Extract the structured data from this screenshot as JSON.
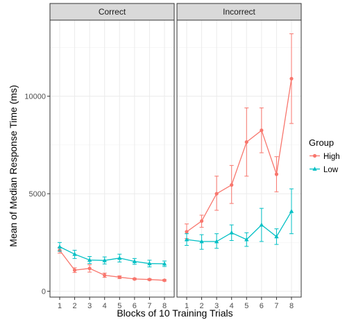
{
  "chart_data": {
    "type": "line",
    "xlabel": "Blocks of 10 Training Trials",
    "ylabel": "Mean of Median Response Time (ms)",
    "x": [
      1,
      2,
      3,
      4,
      5,
      6,
      7,
      8
    ],
    "ylim": [
      -300,
      13900
    ],
    "yticks": [
      0,
      5000,
      10000
    ],
    "grid": true,
    "legend": {
      "title": "Group",
      "position": "right"
    },
    "series_styles": [
      {
        "name": "High",
        "color": "#F8766D",
        "marker": "circle"
      },
      {
        "name": "Low",
        "color": "#00BFC4",
        "marker": "triangle"
      }
    ],
    "panels": [
      {
        "title": "Correct",
        "series": [
          {
            "name": "High",
            "values": [
              2100,
              1080,
              1170,
              820,
              720,
              630,
              600,
              560
            ],
            "lower": [
              1950,
              960,
              980,
              710,
              650,
              590,
              560,
              520
            ],
            "upper": [
              2250,
              1200,
              1360,
              930,
              790,
              670,
              640,
              600
            ]
          },
          {
            "name": "Low",
            "values": [
              2280,
              1900,
              1600,
              1580,
              1700,
              1530,
              1420,
              1410
            ],
            "lower": [
              2050,
              1680,
              1420,
              1400,
              1500,
              1380,
              1250,
              1270
            ],
            "upper": [
              2500,
              2100,
              1780,
              1760,
              1900,
              1680,
              1590,
              1550
            ]
          }
        ]
      },
      {
        "title": "Incorrect",
        "series": [
          {
            "name": "High",
            "values": [
              3050,
              3600,
              5000,
              5450,
              7650,
              8250,
              6000,
              10900
            ],
            "lower": [
              2700,
              3280,
              4150,
              4500,
              5900,
              7100,
              5100,
              8600
            ],
            "upper": [
              3450,
              3900,
              5900,
              6450,
              9400,
              9400,
              6900,
              13200
            ]
          },
          {
            "name": "Low",
            "values": [
              2650,
              2550,
              2550,
              3000,
              2650,
              3400,
              2800,
              4100
            ],
            "lower": [
              2350,
              2150,
              2200,
              2600,
              2300,
              2550,
              2400,
              2950
            ],
            "upper": [
              2950,
              2900,
              2950,
              3400,
              3000,
              4250,
              3200,
              5250
            ]
          }
        ]
      }
    ]
  }
}
